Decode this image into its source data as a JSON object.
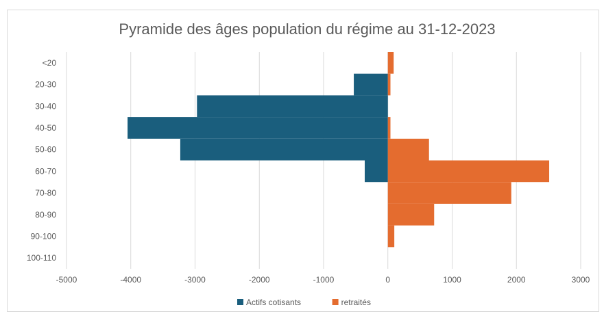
{
  "chart_data": {
    "type": "bar",
    "orientation": "horizontal",
    "title": "Pyramide des âges population du régime au 31-12-2023",
    "categories": [
      "<20",
      "20-30",
      "30-40",
      "40-50",
      "50-60",
      "60-70",
      "70-80",
      "80-90",
      "90-100",
      "100-110"
    ],
    "series": [
      {
        "name": "Actifs cotisants",
        "color": "#1a5e7d",
        "values": [
          0,
          -530,
          -2970,
          -4050,
          -3230,
          -360,
          0,
          0,
          0,
          0
        ]
      },
      {
        "name": "retraités",
        "color": "#e46c2f",
        "values": [
          90,
          40,
          0,
          40,
          640,
          2510,
          1920,
          720,
          100,
          0
        ]
      }
    ],
    "xlim": [
      -5000,
      3000
    ],
    "xticks": [
      "-5000",
      "-4000",
      "-3000",
      "-2000",
      "-1000",
      "0",
      "1000",
      "2000",
      "3000"
    ],
    "grid": true,
    "legend": "bottom"
  }
}
